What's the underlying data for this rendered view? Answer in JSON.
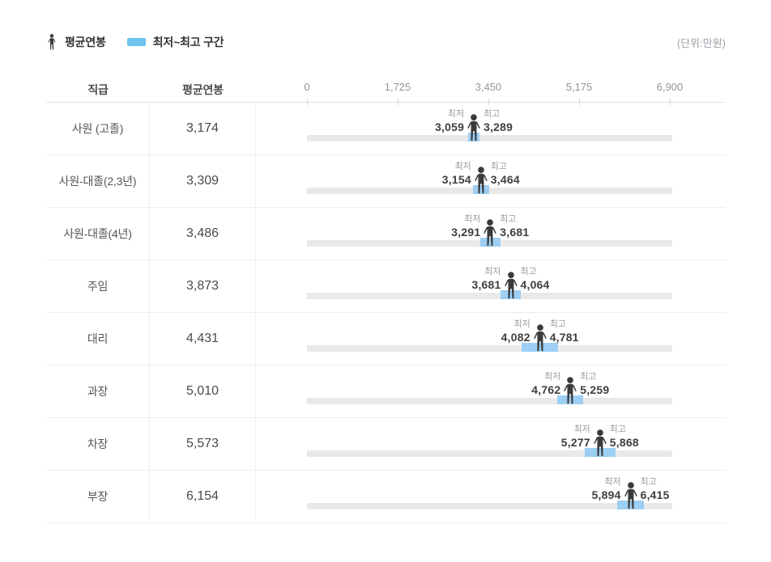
{
  "legend": {
    "avg_label": "평균연봉",
    "range_label": "최저~최고 구간"
  },
  "unit_note": "(단위:만원)",
  "table_header": {
    "position": "직급",
    "avg_salary": "평균연봉"
  },
  "labels": {
    "min": "최저",
    "max": "최고"
  },
  "colors": {
    "legend_swatch": "#6fc2f0",
    "range": "#9dcff4",
    "track": "#e9e9e9",
    "person": "#3a3a3a"
  },
  "chart_data": {
    "type": "bar",
    "title": "직급별 평균연봉 및 최저~최고 구간",
    "unit": "만원",
    "axis": {
      "min": 0,
      "max": 6900,
      "ticks": [
        0,
        1725,
        3450,
        5175,
        6900
      ],
      "tick_labels": [
        "0",
        "1,725",
        "3,450",
        "5,175",
        "6,900"
      ]
    },
    "rows": [
      {
        "position": "사원 (고졸)",
        "avg": 3174,
        "min": 3059,
        "max": 3289,
        "avg_label": "3,174",
        "min_label": "3,059",
        "max_label": "3,289"
      },
      {
        "position": "사원-대졸(2,3년)",
        "avg": 3309,
        "min": 3154,
        "max": 3464,
        "avg_label": "3,309",
        "min_label": "3,154",
        "max_label": "3,464"
      },
      {
        "position": "사원-대졸(4년)",
        "avg": 3486,
        "min": 3291,
        "max": 3681,
        "avg_label": "3,486",
        "min_label": "3,291",
        "max_label": "3,681"
      },
      {
        "position": "주임",
        "avg": 3873,
        "min": 3681,
        "max": 4064,
        "avg_label": "3,873",
        "min_label": "3,681",
        "max_label": "4,064"
      },
      {
        "position": "대리",
        "avg": 4431,
        "min": 4082,
        "max": 4781,
        "avg_label": "4,431",
        "min_label": "4,082",
        "max_label": "4,781"
      },
      {
        "position": "과장",
        "avg": 5010,
        "min": 4762,
        "max": 5259,
        "avg_label": "5,010",
        "min_label": "4,762",
        "max_label": "5,259"
      },
      {
        "position": "차장",
        "avg": 5573,
        "min": 5277,
        "max": 5868,
        "avg_label": "5,573",
        "min_label": "5,277",
        "max_label": "5,868"
      },
      {
        "position": "부장",
        "avg": 6154,
        "min": 5894,
        "max": 6415,
        "avg_label": "6,154",
        "min_label": "5,894",
        "max_label": "6,415"
      }
    ]
  }
}
